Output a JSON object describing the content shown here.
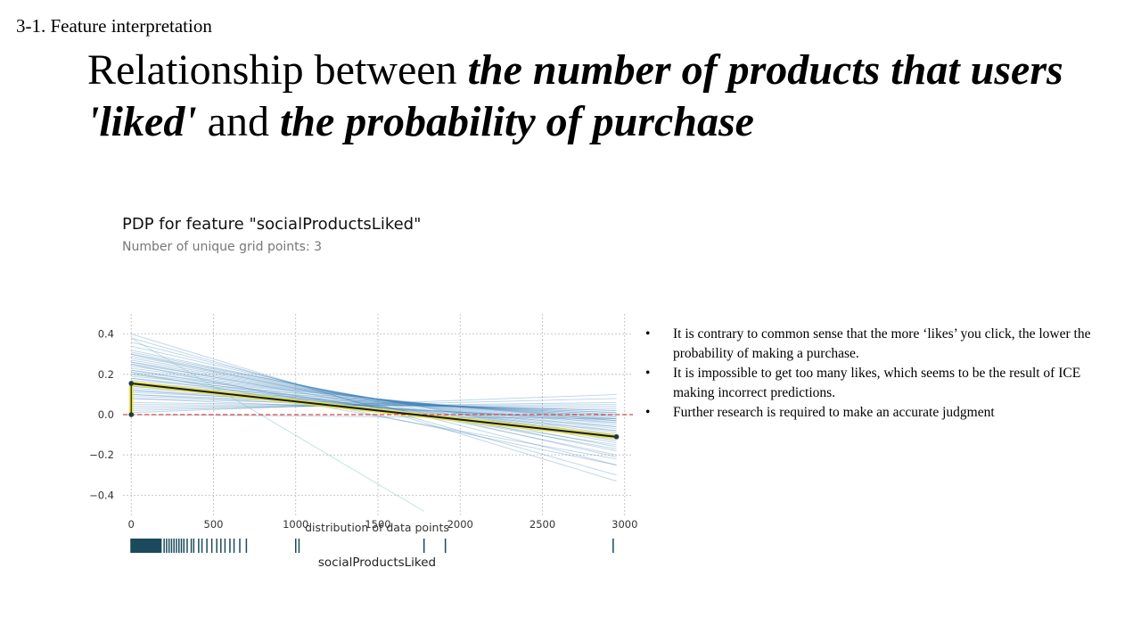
{
  "slide": {
    "section": "3-1. Feature interpretation",
    "title_parts": [
      "Relationship between ",
      "the number of products that users 'liked'",
      " and ",
      "the probability of purchase"
    ],
    "bullets": [
      "It is contrary to common sense that the more ‘likes’ you click, the lower the probability of making a purchase.",
      "It is impossible to get too many likes, which seems to be the result of ICE making incorrect predictions.",
      "Further research is required to make an accurate judgment"
    ]
  },
  "chart_data": {
    "type": "line",
    "title": "PDP for feature \"socialProductsLiked\"",
    "subtitle": "Number of unique grid points: 3",
    "xlabel": "socialProductsLiked",
    "dist_label": "distribution of data points",
    "xlim": [
      -50,
      3050
    ],
    "ylim": [
      -0.5,
      0.5
    ],
    "xticks": [
      0,
      500,
      1000,
      1500,
      2000,
      2500,
      3000
    ],
    "yticks": [
      -0.4,
      -0.2,
      0.0,
      0.2,
      0.4
    ],
    "grid": true,
    "pdp": {
      "x": [
        0,
        2950
      ],
      "y": [
        0.155,
        -0.11
      ],
      "color": "#1a1a1a",
      "band_color": "#e8e040"
    },
    "baseline": {
      "y": 0.0,
      "color": "#d94a4a"
    },
    "ice_color": "#3b82b8",
    "ice_lines": [
      [
        0.4,
        -0.33
      ],
      [
        0.38,
        -0.3
      ],
      [
        0.36,
        -0.25
      ],
      [
        0.34,
        -0.21
      ],
      [
        0.32,
        -0.18
      ],
      [
        0.31,
        -0.16
      ],
      [
        0.3,
        -0.14
      ],
      [
        0.29,
        -0.13
      ],
      [
        0.28,
        -0.12
      ],
      [
        0.27,
        -0.11
      ],
      [
        0.26,
        -0.1
      ],
      [
        0.25,
        -0.09
      ],
      [
        0.24,
        -0.08
      ],
      [
        0.23,
        -0.07
      ],
      [
        0.22,
        -0.06
      ],
      [
        0.21,
        -0.05
      ],
      [
        0.2,
        -0.04
      ],
      [
        0.19,
        -0.03
      ],
      [
        0.18,
        -0.03
      ],
      [
        0.17,
        -0.02
      ],
      [
        0.16,
        -0.02
      ],
      [
        0.15,
        -0.01
      ],
      [
        0.14,
        -0.01
      ],
      [
        0.13,
        0.0
      ],
      [
        0.12,
        0.0
      ],
      [
        0.11,
        0.01
      ],
      [
        0.1,
        0.01
      ],
      [
        0.09,
        0.02
      ],
      [
        0.08,
        0.02
      ],
      [
        0.06,
        0.03
      ],
      [
        0.05,
        0.04
      ],
      [
        0.04,
        0.05
      ],
      [
        0.03,
        0.06
      ],
      [
        0.02,
        0.08
      ],
      [
        0.01,
        0.1
      ],
      [
        0.0,
        -0.02
      ],
      [
        0.3,
        -0.2
      ],
      [
        0.26,
        -0.17
      ],
      [
        0.22,
        -0.15
      ],
      [
        0.2,
        -0.12
      ],
      [
        0.18,
        -0.1
      ],
      [
        0.16,
        -0.08
      ],
      [
        0.14,
        -0.06
      ],
      [
        0.12,
        -0.04
      ],
      [
        0.1,
        -0.03
      ],
      [
        0.08,
        -0.02
      ],
      [
        0.25,
        -0.25
      ],
      [
        0.21,
        -0.22
      ]
    ],
    "ice_segments": [
      [
        0,
        0.38,
        1780,
        -0.48
      ]
    ],
    "dist_points": [
      0,
      20,
      40,
      60,
      80,
      100,
      120,
      140,
      160,
      180,
      200,
      215,
      230,
      245,
      260,
      275,
      290,
      305,
      320,
      340,
      365,
      380,
      410,
      430,
      460,
      490,
      520,
      545,
      570,
      600,
      625,
      660,
      700,
      1000,
      1020,
      1780,
      1910,
      2930
    ]
  }
}
